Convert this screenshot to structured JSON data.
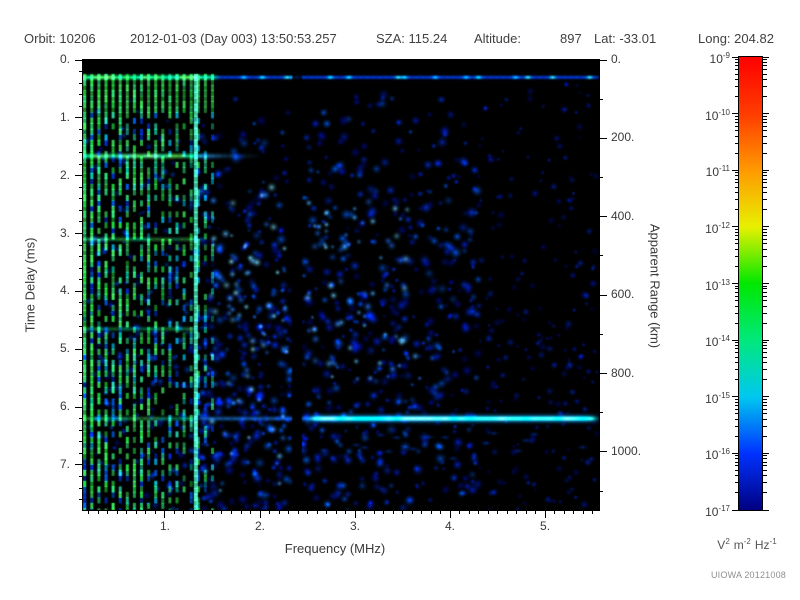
{
  "header": {
    "orbit_label": "Orbit:",
    "orbit_value": "10206",
    "datetime": "2012-01-03 (Day 003) 13:50:53.257",
    "sza_label": "SZA:",
    "sza_value": "115.24",
    "altitude_label": "Altitude:",
    "altitude_value": "897",
    "lat_label": "Lat:",
    "lat_value": "-33.01",
    "long_label": "Long:",
    "long_value": "204.82"
  },
  "credit": "UIOWA 20121008",
  "chart_data": {
    "type": "heatmap",
    "description": "Radar sounder ionogram: received spectral density versus sounding frequency and echo time delay; black = below threshold, rainbow scale = increasing spectral density",
    "x_axis": {
      "label": "Frequency (MHz)",
      "min": 0.137,
      "max": 5.568,
      "major_ticks": [
        1,
        2,
        3,
        4,
        5
      ],
      "tick_labels": [
        "1.",
        "2.",
        "3.",
        "4.",
        "5."
      ],
      "minor_step": 0.1
    },
    "y_axis": {
      "label": "Time Delay (ms)",
      "min": 0,
      "max": 7.78,
      "inverted": true,
      "major_ticks": [
        0,
        1,
        2,
        3,
        4,
        5,
        6,
        7
      ],
      "tick_labels": [
        "0.",
        "1.",
        "2.",
        "3.",
        "4.",
        "5.",
        "6.",
        "7."
      ],
      "minor_step": 0.2
    },
    "y2_axis": {
      "label": "Apparent Range (km)",
      "min": 0,
      "max": 1148,
      "major_ticks": [
        0,
        200,
        400,
        600,
        800,
        1000
      ],
      "tick_labels": [
        "0.",
        "200.",
        "400.",
        "600.",
        "800.",
        "1000."
      ],
      "minor_step": 100
    },
    "colorbar": {
      "scale": "log",
      "mantissa": "10",
      "exponents": [
        "-9",
        "-10",
        "-11",
        "-12",
        "-13",
        "-14",
        "-15",
        "-16",
        "-17"
      ],
      "unit_parts": [
        {
          "base": "V",
          "exp": "2"
        },
        {
          "base": "m",
          "exp": "-2"
        },
        {
          "base": "Hz",
          "exp": "-1"
        }
      ],
      "colors_top_to_bottom": [
        "#ff0000",
        "#ff3c00",
        "#ff9900",
        "#e8f000",
        "#00e800",
        "#00e87c",
        "#00c8f0",
        "#0032ff",
        "#000080"
      ]
    },
    "spectrogram": {
      "background": "#000000",
      "seed": 7,
      "quiet_top_ms": 0.22,
      "features": [
        {
          "kind": "speckle",
          "label": "weak echoes between plasma lines",
          "f0": 0.16,
          "f1": 1.45,
          "t0": 0.5,
          "t1": 7.78,
          "count": 260,
          "rmin": 1.2,
          "rmax": 3.0,
          "bias": 0.75,
          "amin": 0.3,
          "amax": 0.75,
          "palette": [
            "#0010c0",
            "#0030ff",
            "#0050ff"
          ]
        },
        {
          "kind": "speckle",
          "label": "diffuse ionospheric scatter 1.4-2.3 MHz",
          "f0": 1.38,
          "f1": 2.33,
          "t0": 0.6,
          "t1": 7.78,
          "count": 380,
          "rmin": 1.5,
          "rmax": 3.6,
          "bias": 0.62,
          "amin": 0.35,
          "amax": 0.9,
          "palette": [
            "#000faa",
            "#0022dd",
            "#0038ff",
            "#0060ff"
          ]
        },
        {
          "kind": "speckle",
          "label": "diffuse ionospheric scatter 2.45-4.3 MHz",
          "f0": 2.45,
          "f1": 4.3,
          "t0": 0.5,
          "t1": 7.78,
          "count": 540,
          "rmin": 1.5,
          "rmax": 3.6,
          "bias": 0.7,
          "amin": 0.35,
          "amax": 0.9,
          "palette": [
            "#000faa",
            "#0022dd",
            "#0038ff",
            "#0060ff"
          ]
        },
        {
          "kind": "speckle",
          "label": "sparse scatter above 4.3 MHz",
          "f0": 4.3,
          "f1": 5.55,
          "t0": 0.4,
          "t1": 7.78,
          "count": 220,
          "rmin": 1.2,
          "rmax": 2.8,
          "bias": 0.8,
          "amin": 0.3,
          "amax": 0.7,
          "palette": [
            "#000d99",
            "#001ddd",
            "#0033ff"
          ]
        },
        {
          "kind": "speckle",
          "label": "brighter cyan cores mid-band",
          "f0": 2.5,
          "f1": 3.7,
          "t0": 2.2,
          "t1": 5.6,
          "count": 70,
          "rmin": 1.5,
          "rmax": 3.0,
          "bias": 1,
          "amin": 0.45,
          "amax": 0.85,
          "palette": [
            "#2277ff",
            "#44aaff",
            "#66ccff"
          ]
        },
        {
          "kind": "speckle",
          "label": "brighter cores 1.5-2.3 MHz",
          "f0": 1.45,
          "f1": 2.3,
          "t0": 2.2,
          "t1": 7.5,
          "count": 80,
          "rmin": 1.5,
          "rmax": 3.0,
          "bias": 1,
          "amin": 0.45,
          "amax": 0.85,
          "palette": [
            "#2277ff",
            "#55bbff",
            "#77ddff"
          ]
        },
        {
          "kind": "harmonics",
          "label": "electron plasma oscillation harmonic lines",
          "f0": 0.155,
          "f1": 1.5,
          "n": 19,
          "t0": 0.24,
          "t1": 7.78,
          "seg": 5.5,
          "greens": [
            "#22ee44",
            "#44ff66",
            "#33ff88"
          ],
          "cyans": [
            "#00e0b0",
            "#33ffcc",
            "#00ccff"
          ],
          "blues": [
            "#0066ff",
            "#0033dd"
          ]
        },
        {
          "kind": "vline",
          "label": "strong plasma line at 1.33 MHz",
          "f": 1.325,
          "w": 4,
          "color": "#55ffcc",
          "alpha": 0.95,
          "t0": 0.24,
          "t1": 7.78
        },
        {
          "kind": "hband",
          "label": "transmitter leakage band at 0.3 ms",
          "mode": "top",
          "t": 0.3,
          "h": 9,
          "f0": 0.14,
          "f1": 5.57,
          "alpha": 0.9,
          "green_until": 1.55,
          "greens": [
            "#44ff55",
            "#66ff66",
            "#00ffaa"
          ],
          "accents": [
            "#00ffcc",
            "#44ff66",
            "#00ccff"
          ],
          "base": "#0044ff"
        },
        {
          "kind": "hband",
          "label": "echo band at 1.66 ms",
          "mode": "green",
          "t": 1.66,
          "h": 8,
          "f0": 0.14,
          "f1": 2.0,
          "alpha": 0.85,
          "fade_after": 1.35,
          "greens": [
            "#44ff44",
            "#88ff66",
            "#00ffaa",
            "#66ffcc"
          ]
        },
        {
          "kind": "hband",
          "label": "echo band repeat at 3.1 ms",
          "mode": "green",
          "t": 3.1,
          "h": 7,
          "f0": 0.14,
          "f1": 1.4,
          "alpha": 0.5,
          "fade_after": 1.3,
          "greens": [
            "#44ff44",
            "#66ff88",
            "#00ffaa"
          ]
        },
        {
          "kind": "hband",
          "label": "echo band repeat at 4.65 ms",
          "mode": "green",
          "t": 4.65,
          "h": 7,
          "f0": 0.14,
          "f1": 1.35,
          "alpha": 0.45,
          "fade_after": 1.25,
          "greens": [
            "#44ff44",
            "#66ff88",
            "#00ffaa"
          ]
        },
        {
          "kind": "hband",
          "label": "echo band repeat at 6.2 ms",
          "mode": "green",
          "t": 6.2,
          "h": 7,
          "f0": 0.14,
          "f1": 1.35,
          "alpha": 0.5,
          "fade_after": 1.25,
          "greens": [
            "#44ff44",
            "#66ff88",
            "#00ffaa"
          ]
        },
        {
          "kind": "surface",
          "label": "surface reflection at 6.2 ms",
          "t": 6.2,
          "f0": 1.4,
          "f1": 5.55,
          "strong_from": 2.55,
          "weak": "#2288ff",
          "halo": "#0099ff",
          "tail": "#0044dd",
          "core": [
            "#aaffcc",
            "#66ffbb",
            "#44ff99",
            "#00ffcc"
          ]
        },
        {
          "kind": "gap",
          "label": "missing data column at 2.39 MHz",
          "f": 2.39,
          "w": 0.1,
          "topglow": "#0030a0"
        }
      ]
    }
  }
}
